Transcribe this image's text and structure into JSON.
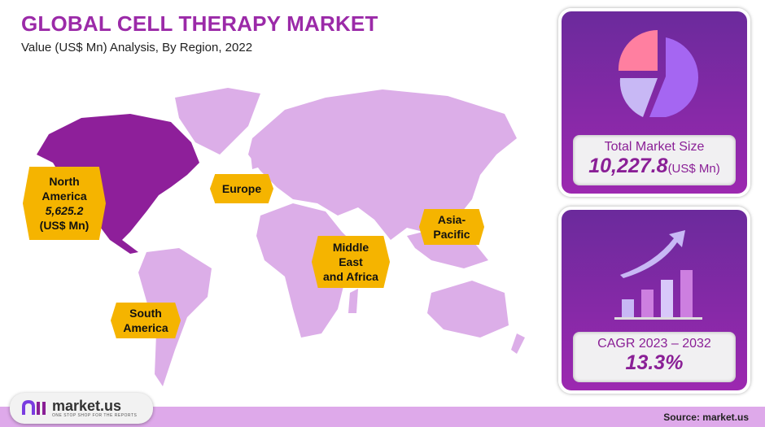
{
  "header": {
    "title": "GLOBAL CELL THERAPY MARKET",
    "subtitle": "Value (US$ Mn) Analysis, By Region, 2022"
  },
  "colors": {
    "accent": "#9b2aa8",
    "highlight_region": "#8e1f9a",
    "map": "#dcaee8",
    "label": "#f5b400"
  },
  "regions": {
    "north_america": {
      "name_l1": "North",
      "name_l2": "America",
      "value": "5,625.2",
      "unit": "(US$ Mn)"
    },
    "europe": {
      "name": "Europe"
    },
    "asia_pacific": {
      "name_l1": "Asia-",
      "name_l2": "Pacific"
    },
    "mea": {
      "name_l1": "Middle",
      "name_l2": "East",
      "name_l3": "and Africa"
    },
    "south_america": {
      "name_l1": "South",
      "name_l2": "America"
    }
  },
  "market_size": {
    "label": "Total Market Size",
    "value": "10,227.8",
    "unit": "(US$ Mn)",
    "icon": "pie-chart-icon"
  },
  "cagr": {
    "label": "CAGR 2023 – 2032",
    "value": "13.3%",
    "icon": "growth-chart-icon"
  },
  "footer": {
    "logo_text": "market.us",
    "tagline": "ONE STOP SHOP FOR THE REPORTS",
    "source": "Source: market.us"
  }
}
